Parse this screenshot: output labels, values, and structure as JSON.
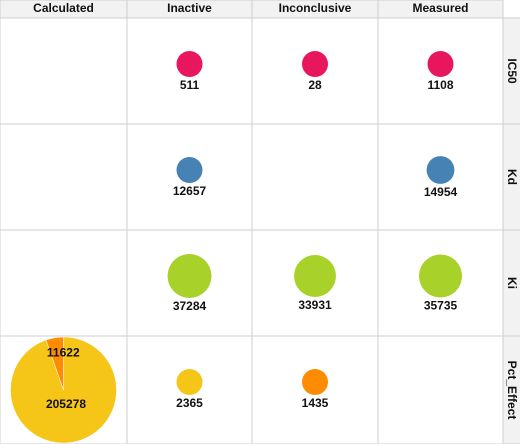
{
  "chart_data": {
    "type": "pie",
    "columns": [
      "Calculated",
      "Inactive",
      "Inconclusive",
      "Measured"
    ],
    "rows": [
      "IC50",
      "Kd",
      "Ki",
      "Pct_Effect"
    ],
    "cells": [
      [
        null,
        [
          {
            "value": 511,
            "color": "#e8175d"
          }
        ],
        [
          {
            "value": 28,
            "color": "#e8175d"
          }
        ],
        [
          {
            "value": 1108,
            "color": "#e8175d"
          }
        ]
      ],
      [
        null,
        [
          {
            "value": 12657,
            "color": "#4682b4"
          }
        ],
        null,
        [
          {
            "value": 14954,
            "color": "#4682b4"
          }
        ]
      ],
      [
        null,
        [
          {
            "value": 37284,
            "color": "#a8d12a"
          }
        ],
        [
          {
            "value": 33931,
            "color": "#a8d12a"
          }
        ],
        [
          {
            "value": 35735,
            "color": "#a8d12a"
          }
        ]
      ],
      [
        [
          {
            "value": 205278,
            "color": "#f5c518"
          },
          {
            "value": 11622,
            "color": "#ff8c00"
          }
        ],
        [
          {
            "value": 2365,
            "color": "#f5c518"
          }
        ],
        [
          {
            "value": 1435,
            "color": "#ff8c00"
          }
        ],
        null
      ]
    ]
  }
}
